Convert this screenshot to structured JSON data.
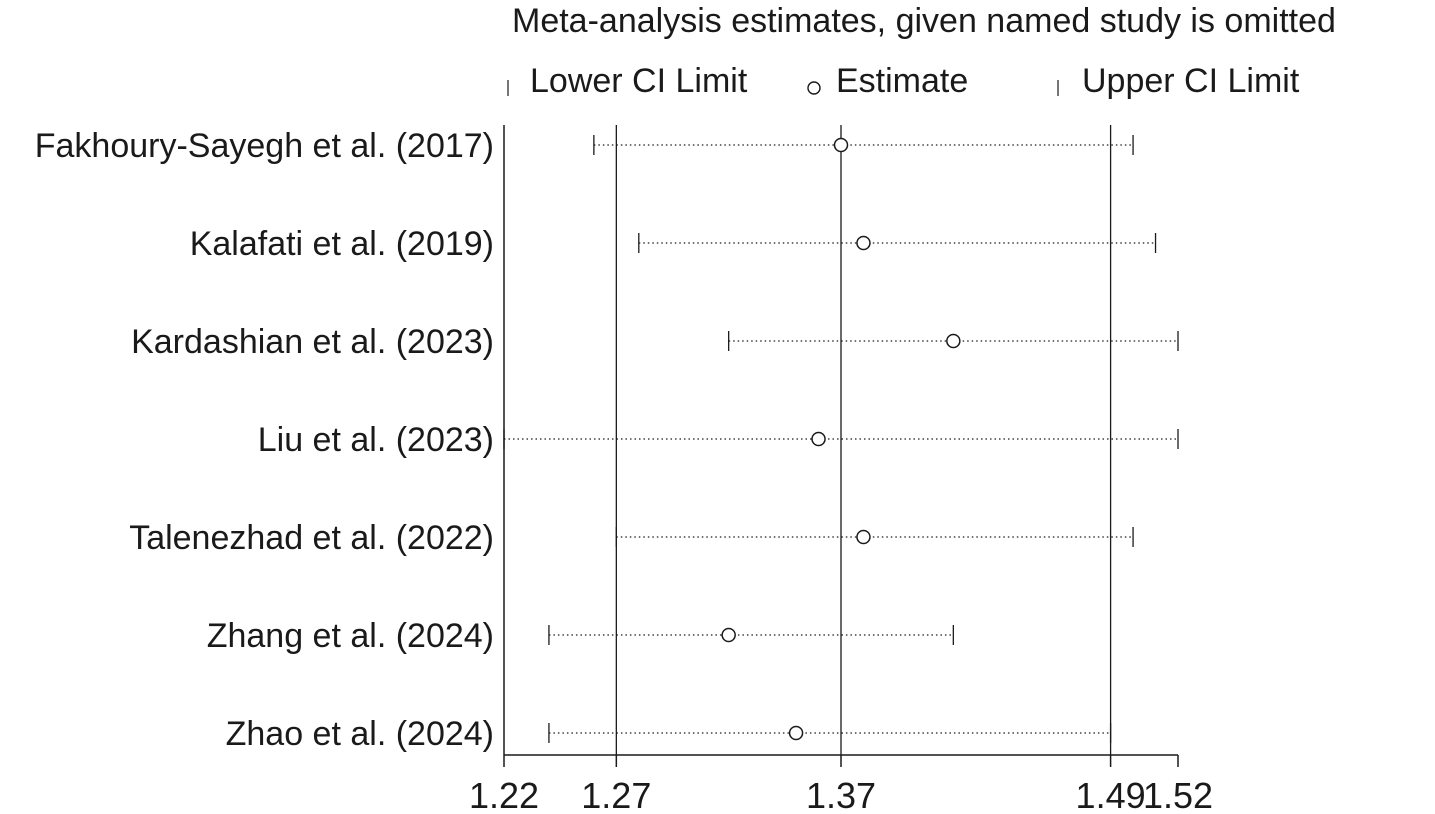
{
  "title": "Meta-analysis estimates, given named study is omitted",
  "legend": {
    "lower": "Lower CI Limit",
    "estimate": "Estimate",
    "upper": "Upper CI Limit"
  },
  "chart_data": {
    "type": "scatter",
    "title": "Meta-analysis estimates, given named study is omitted",
    "xlabel": "",
    "ylabel": "",
    "xlim": [
      1.22,
      1.52
    ],
    "xticks": [
      "1.22",
      "1.27",
      "1.37",
      "1.49",
      "1.52"
    ],
    "reference_lines": [
      1.27,
      1.37,
      1.49
    ],
    "legend": [
      "Lower CI Limit",
      "Estimate",
      "Upper CI Limit"
    ],
    "legend_position": "top",
    "studies": [
      {
        "label": "Fakhoury-Sayegh et al. (2017)",
        "lower": 1.26,
        "estimate": 1.37,
        "upper": 1.5
      },
      {
        "label": "Kalafati et al. (2019)",
        "lower": 1.28,
        "estimate": 1.38,
        "upper": 1.51
      },
      {
        "label": "Kardashian et al. (2023)",
        "lower": 1.32,
        "estimate": 1.42,
        "upper": 1.52
      },
      {
        "label": "Liu et al. (2023)",
        "lower": 1.22,
        "estimate": 1.36,
        "upper": 1.52
      },
      {
        "label": "Talenezhad et al. (2022)",
        "lower": 1.27,
        "estimate": 1.38,
        "upper": 1.5
      },
      {
        "label": "Zhang et al. (2024)",
        "lower": 1.24,
        "estimate": 1.32,
        "upper": 1.42
      },
      {
        "label": "Zhao et al. (2024)",
        "lower": 1.24,
        "estimate": 1.35,
        "upper": 1.49
      }
    ]
  }
}
